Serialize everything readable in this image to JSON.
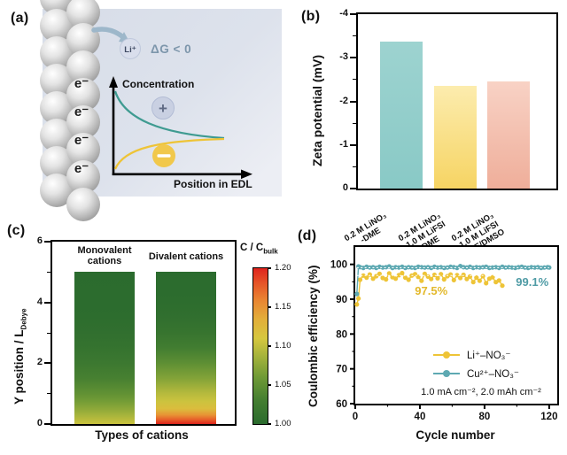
{
  "figure": {
    "background": "#ffffff",
    "panels": {
      "a": {
        "label": "(a)",
        "li_ion": "Li⁺",
        "delta_g": "ΔG < 0",
        "electrons": [
          "e⁻",
          "e⁻",
          "e⁻",
          "e⁻"
        ],
        "plus_symbol": "+",
        "minus_symbol": "−",
        "y_axis_label": "Concentration",
        "x_axis_label": "Position in EDL",
        "colors": {
          "cation_curve": "#3f9b91",
          "anion_curve": "#eec437",
          "arrow": "#9db7ca",
          "delta_g_text": "#7d96ab",
          "plus_circle": "#c9d0e2",
          "minus_circle": "#f1c84b"
        }
      },
      "b": {
        "label": "(b)"
      },
      "c": {
        "label": "(c)"
      },
      "d": {
        "label": "(d)"
      }
    }
  },
  "chart_data": [
    {
      "id": "b",
      "type": "bar",
      "ylabel": "Zeta potential (mV)",
      "categories": [
        "0.2 M LiNO₃\n-DME",
        "0.2 M LiNO₃\n-1.0 M LiFSI\n-DME",
        "0.2 M LiNO₃\n-1.0 M LiFSI\n-DME/DMSO"
      ],
      "values": [
        -3.38,
        -2.35,
        -2.45
      ],
      "ylim": [
        0,
        -4
      ],
      "axis_inverted": true,
      "yticks": [
        0,
        -1,
        -2,
        -3,
        -4
      ],
      "yticks_minor": [
        -0.5,
        -1.5,
        -2.5,
        -3.5
      ],
      "bar_colors_top": [
        "#9dd3d0",
        "#fcecae",
        "#f8d2c5"
      ],
      "bar_colors_bottom": [
        "#89c9c6",
        "#f6d463",
        "#efae9a"
      ]
    },
    {
      "id": "c",
      "type": "heatmap",
      "xlabel": "Types of cations",
      "ylabel_main": "Y position / L",
      "ylabel_sub": "Debye",
      "categories": [
        "Monovalent\ncations",
        "Divalent cations"
      ],
      "ylim": [
        0,
        6
      ],
      "yticks": [
        0,
        2,
        4,
        6
      ],
      "yticks_minor": [
        1,
        3,
        5
      ],
      "bar_top": 5,
      "colorbar": {
        "title_main": "C / C",
        "title_sub": "bulk",
        "range": [
          1.0,
          1.2
        ],
        "ticks": [
          1.2,
          1.15,
          1.1,
          1.05,
          1.0
        ],
        "stops": [
          [
            1.0,
            "#2b6b2e"
          ],
          [
            1.03,
            "#447e31"
          ],
          [
            1.06,
            "#6f9a36"
          ],
          [
            1.09,
            "#abb63c"
          ],
          [
            1.11,
            "#d6c73f"
          ],
          [
            1.135,
            "#e3ae3a"
          ],
          [
            1.16,
            "#e98332"
          ],
          [
            1.18,
            "#e65628"
          ],
          [
            1.2,
            "#df241e"
          ]
        ]
      },
      "profiles": {
        "monovalent": [
          [
            0,
            1.105
          ],
          [
            0.25,
            1.09
          ],
          [
            0.5,
            1.075
          ],
          [
            0.75,
            1.062
          ],
          [
            1,
            1.05
          ],
          [
            1.5,
            1.032
          ],
          [
            2,
            1.02
          ],
          [
            2.5,
            1.012
          ],
          [
            3,
            1.007
          ],
          [
            3.5,
            1.003
          ],
          [
            4,
            1.001
          ],
          [
            5,
            1.0
          ]
        ],
        "divalent": [
          [
            0,
            1.2
          ],
          [
            0.15,
            1.175
          ],
          [
            0.3,
            1.15
          ],
          [
            0.5,
            1.12
          ],
          [
            0.75,
            1.105
          ],
          [
            1,
            1.095
          ],
          [
            1.5,
            1.07
          ],
          [
            2,
            1.048
          ],
          [
            2.5,
            1.028
          ],
          [
            3,
            1.015
          ],
          [
            3.5,
            1.007
          ],
          [
            4,
            1.003
          ],
          [
            5,
            1.0
          ]
        ]
      }
    },
    {
      "id": "d",
      "type": "scatter",
      "xlabel": "Cycle number",
      "ylabel": "Coulombic efficiency (%)",
      "xlim": [
        0,
        125
      ],
      "ylim": [
        60,
        105
      ],
      "xticks": [
        0,
        40,
        80,
        120
      ],
      "xticks_minor": [
        20,
        60,
        100
      ],
      "yticks": [
        60,
        70,
        80,
        90,
        100
      ],
      "yticks_minor": [
        65,
        75,
        85,
        95
      ],
      "condition_label": "1.0 mA cm⁻², 2.0 mAh cm⁻²",
      "annotations": [
        {
          "text": "97.5%",
          "color": "#e3b92c",
          "x": 47,
          "y": 92.3
        },
        {
          "text": "99.1%",
          "color": "#4f9ba5",
          "x": 109.5,
          "y": 94.8
        }
      ],
      "reference_lines": [
        {
          "y": 96.8,
          "x1": 1,
          "x2": 92,
          "color": "#ffffff"
        },
        {
          "y": 99.05,
          "x1": 1,
          "x2": 120,
          "color": "#ffffff"
        }
      ],
      "series": [
        {
          "name": "Li⁺–NO₃⁻",
          "color": "#eec437",
          "points": [
            [
              1,
              88.5
            ],
            [
              2,
              90.2
            ],
            [
              3,
              95.6
            ],
            [
              5,
              96.8
            ],
            [
              7,
              96.2
            ],
            [
              9,
              97.1
            ],
            [
              11,
              95.9
            ],
            [
              13,
              96.6
            ],
            [
              15,
              97.3
            ],
            [
              17,
              96.1
            ],
            [
              19,
              95.7
            ],
            [
              21,
              97.4
            ],
            [
              23,
              96.3
            ],
            [
              25,
              95.9
            ],
            [
              27,
              96.9
            ],
            [
              29,
              97.5
            ],
            [
              31,
              96.2
            ],
            [
              33,
              95.6
            ],
            [
              35,
              96.8
            ],
            [
              37,
              97.2
            ],
            [
              39,
              96.4
            ],
            [
              41,
              95.3
            ],
            [
              43,
              97.3
            ],
            [
              45,
              96.5
            ],
            [
              47,
              95.8
            ],
            [
              49,
              97.0
            ],
            [
              51,
              96.0
            ],
            [
              53,
              97.2
            ],
            [
              55,
              95.7
            ],
            [
              57,
              96.6
            ],
            [
              59,
              97.1
            ],
            [
              61,
              95.5
            ],
            [
              63,
              96.9
            ],
            [
              65,
              96.1
            ],
            [
              67,
              97.0
            ],
            [
              69,
              95.8
            ],
            [
              71,
              96.5
            ],
            [
              73,
              94.9
            ],
            [
              75,
              96.2
            ],
            [
              77,
              95.3
            ],
            [
              79,
              96.6
            ],
            [
              81,
              94.6
            ],
            [
              83,
              95.9
            ],
            [
              85,
              96.3
            ],
            [
              87,
              94.9
            ],
            [
              89,
              95.4
            ],
            [
              91,
              93.9
            ]
          ]
        },
        {
          "name": "Cu²⁺–NO₃⁻",
          "color": "#5ea9b2",
          "points": [
            [
              1,
              91.5
            ],
            [
              2,
              99.4
            ],
            [
              3,
              99.2
            ],
            [
              5,
              99.0
            ],
            [
              7,
              99.3
            ],
            [
              9,
              99.1
            ],
            [
              11,
              99.2
            ],
            [
              13,
              99.0
            ],
            [
              15,
              99.3
            ],
            [
              17,
              99.1
            ],
            [
              19,
              99.2
            ],
            [
              21,
              99.4
            ],
            [
              23,
              99.0
            ],
            [
              25,
              99.2
            ],
            [
              27,
              99.1
            ],
            [
              29,
              99.3
            ],
            [
              31,
              99.0
            ],
            [
              33,
              99.2
            ],
            [
              35,
              99.1
            ],
            [
              37,
              99.0
            ],
            [
              39,
              99.3
            ],
            [
              41,
              99.2
            ],
            [
              43,
              99.1
            ],
            [
              45,
              99.2
            ],
            [
              47,
              99.0
            ],
            [
              49,
              99.3
            ],
            [
              51,
              99.1
            ],
            [
              53,
              99.2
            ],
            [
              55,
              99.0
            ],
            [
              57,
              99.1
            ],
            [
              59,
              99.3
            ],
            [
              61,
              99.2
            ],
            [
              63,
              99.0
            ],
            [
              65,
              99.5
            ],
            [
              67,
              99.2
            ],
            [
              69,
              99.1
            ],
            [
              71,
              99.3
            ],
            [
              73,
              99.0
            ],
            [
              75,
              99.2
            ],
            [
              77,
              99.1
            ],
            [
              79,
              99.2
            ],
            [
              81,
              99.3
            ],
            [
              83,
              99.0
            ],
            [
              85,
              99.1
            ],
            [
              87,
              99.2
            ],
            [
              89,
              99.0
            ],
            [
              91,
              99.3
            ],
            [
              93,
              99.1
            ],
            [
              95,
              99.2
            ],
            [
              97,
              99.1
            ],
            [
              99,
              99.0
            ],
            [
              101,
              99.2
            ],
            [
              103,
              99.3
            ],
            [
              105,
              99.1
            ],
            [
              107,
              99.0
            ],
            [
              109,
              99.2
            ],
            [
              111,
              99.1
            ],
            [
              113,
              99.2
            ],
            [
              115,
              99.0
            ],
            [
              117,
              99.1
            ],
            [
              119,
              99.2
            ],
            [
              120,
              99.1
            ]
          ]
        }
      ]
    }
  ]
}
